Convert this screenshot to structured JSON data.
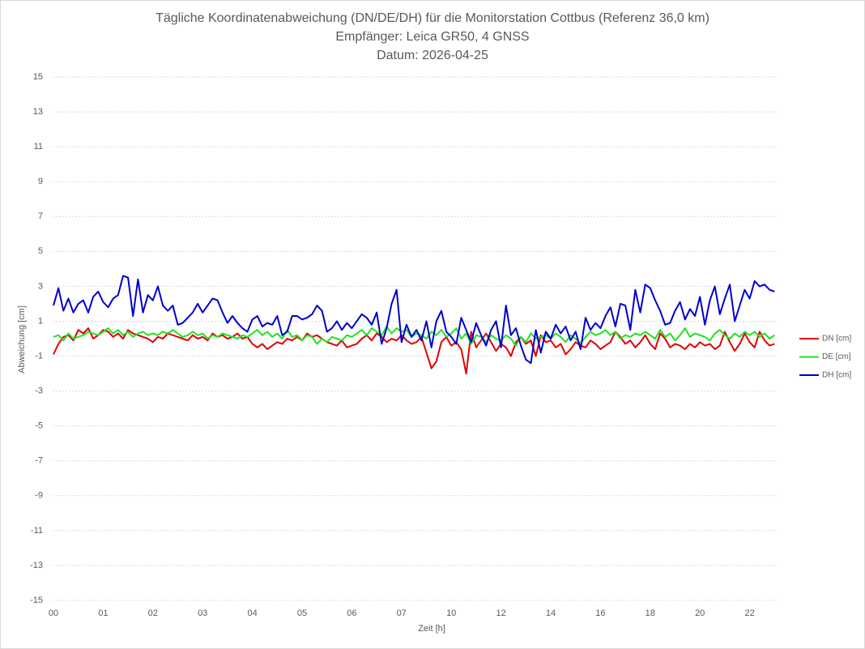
{
  "chart_data": {
    "type": "line",
    "title": "Tägliche Koordinatenabweichung (DN/DE/DH) für die Monitorstation Cottbus (Referenz 36,0 km)",
    "subtitle": "Empfänger: Leica GR50, 4 GNSS",
    "date": "Datum: 2026-04-25",
    "x_label": "Zeit [h]",
    "y_label": "Abweichung [cm]",
    "categories": [
      "00",
      null,
      null,
      null,
      null,
      null,
      null,
      null,
      null,
      null,
      "01",
      null,
      null,
      null,
      null,
      null,
      null,
      null,
      null,
      null,
      "02",
      null,
      null,
      null,
      null,
      null,
      null,
      null,
      null,
      null,
      "03",
      null,
      null,
      null,
      null,
      null,
      null,
      null,
      null,
      null,
      "04",
      null,
      null,
      null,
      null,
      null,
      null,
      null,
      null,
      null,
      "05",
      null,
      null,
      null,
      null,
      null,
      null,
      null,
      null,
      null,
      "06",
      null,
      null,
      null,
      null,
      null,
      null,
      null,
      null,
      null,
      "07",
      null,
      null,
      null,
      null,
      null,
      null,
      null,
      null,
      null,
      "10",
      null,
      null,
      null,
      null,
      null,
      null,
      null,
      null,
      null,
      "12",
      null,
      null,
      null,
      null,
      null,
      null,
      null,
      null,
      null,
      "14",
      null,
      null,
      null,
      null,
      null,
      null,
      null,
      null,
      null,
      "16",
      null,
      null,
      null,
      null,
      null,
      null,
      null,
      null,
      null,
      "18",
      null,
      null,
      null,
      null,
      null,
      null,
      null,
      null,
      null,
      "20",
      null,
      null,
      null,
      null,
      null,
      null,
      null,
      null,
      null,
      "22",
      null,
      null,
      null,
      null,
      null
    ],
    "series": [
      {
        "name": "DN [cm]",
        "color": "#e00000",
        "values": [
          -0.9,
          -0.3,
          0.1,
          0.2,
          -0.1,
          0.5,
          0.3,
          0.6,
          0.0,
          0.2,
          0.5,
          0.4,
          0.1,
          0.3,
          0.0,
          0.5,
          0.3,
          0.2,
          0.1,
          0.0,
          -0.2,
          0.1,
          0.0,
          0.3,
          0.2,
          0.1,
          0.0,
          -0.1,
          0.2,
          0.0,
          0.1,
          -0.1,
          0.3,
          0.1,
          0.2,
          0.0,
          0.1,
          0.3,
          0.0,
          0.1,
          -0.3,
          -0.5,
          -0.3,
          -0.6,
          -0.4,
          -0.2,
          -0.3,
          0.0,
          -0.1,
          0.1,
          -0.1,
          0.3,
          0.1,
          0.2,
          0.0,
          -0.2,
          -0.3,
          -0.4,
          -0.1,
          -0.5,
          -0.4,
          -0.3,
          0.0,
          0.2,
          -0.1,
          0.3,
          0.1,
          -0.2,
          0.0,
          -0.1,
          0.2,
          -0.1,
          -0.3,
          -0.2,
          0.1,
          -0.8,
          -1.7,
          -1.3,
          -0.2,
          0.1,
          -0.4,
          -0.2,
          -0.6,
          -2.0,
          0.4,
          -0.5,
          -0.1,
          0.3,
          -0.2,
          -0.7,
          -0.3,
          -0.5,
          -1.0,
          -0.2,
          0.1,
          -0.3,
          -0.1,
          -1.0,
          0.2,
          -0.2,
          -0.1,
          -0.5,
          -0.3,
          -0.9,
          -0.6,
          -0.2,
          -0.4,
          -0.5,
          -0.1,
          -0.3,
          -0.6,
          -0.4,
          -0.2,
          0.4,
          0.1,
          -0.3,
          -0.1,
          -0.5,
          -0.2,
          0.2,
          -0.3,
          -0.6,
          0.3,
          0.0,
          -0.5,
          -0.3,
          -0.4,
          -0.6,
          -0.3,
          -0.5,
          -0.2,
          -0.4,
          -0.3,
          -0.6,
          -0.4,
          0.4,
          -0.2,
          -0.7,
          -0.3,
          0.3,
          -0.2,
          -0.5,
          0.4,
          -0.1,
          -0.4,
          -0.3
        ]
      },
      {
        "name": "DE [cm]",
        "color": "#22e022",
        "values": [
          0.1,
          0.2,
          -0.1,
          0.3,
          0.0,
          0.1,
          0.2,
          0.4,
          0.3,
          0.2,
          0.4,
          0.6,
          0.3,
          0.5,
          0.2,
          0.4,
          0.1,
          0.3,
          0.4,
          0.2,
          0.3,
          0.2,
          0.4,
          0.3,
          0.5,
          0.3,
          0.1,
          0.2,
          0.4,
          0.2,
          0.3,
          0.0,
          0.2,
          0.1,
          0.3,
          0.2,
          0.1,
          0.0,
          0.2,
          0.1,
          0.3,
          0.5,
          0.2,
          0.4,
          0.1,
          0.3,
          0.0,
          0.5,
          0.1,
          0.2,
          -0.1,
          0.2,
          0.1,
          -0.3,
          0.0,
          -0.2,
          0.1,
          0.0,
          -0.1,
          0.2,
          0.1,
          0.3,
          0.5,
          0.2,
          0.6,
          0.4,
          0.2,
          0.7,
          0.3,
          0.6,
          0.4,
          0.5,
          0.1,
          0.3,
          0.2,
          0.0,
          0.4,
          0.2,
          0.5,
          0.1,
          0.3,
          0.6,
          0.0,
          0.3,
          -0.3,
          0.2,
          0.1,
          -0.2,
          0.2,
          0.0,
          -0.1,
          0.2,
          0.0,
          -0.4,
          0.1,
          -0.2,
          0.3,
          0.0,
          0.1,
          0.2,
          0.0,
          0.3,
          0.1,
          -0.2,
          0.2,
          0.0,
          -0.3,
          0.1,
          0.4,
          0.2,
          0.3,
          0.5,
          0.2,
          0.4,
          0.0,
          0.2,
          0.1,
          0.3,
          0.2,
          0.4,
          0.2,
          0.0,
          0.5,
          0.1,
          0.3,
          -0.1,
          0.2,
          0.6,
          0.1,
          0.3,
          0.2,
          0.1,
          -0.1,
          0.3,
          0.5,
          0.2,
          0.0,
          0.3,
          0.1,
          0.4,
          0.2,
          0.4,
          0.1,
          0.3,
          0.0,
          0.2
        ]
      },
      {
        "name": "DH [cm]",
        "color": "#0000cc",
        "values": [
          1.9,
          2.9,
          1.6,
          2.3,
          1.5,
          2.0,
          2.2,
          1.5,
          2.4,
          2.7,
          2.1,
          1.8,
          2.3,
          2.5,
          3.6,
          3.5,
          1.3,
          3.4,
          1.5,
          2.5,
          2.2,
          3.0,
          1.9,
          1.6,
          1.9,
          0.8,
          0.9,
          1.2,
          1.5,
          2.0,
          1.5,
          1.9,
          2.3,
          2.2,
          1.5,
          0.9,
          1.3,
          0.9,
          0.6,
          0.4,
          1.1,
          1.3,
          0.7,
          0.9,
          0.8,
          1.3,
          0.2,
          0.4,
          1.3,
          1.3,
          1.1,
          1.2,
          1.4,
          1.9,
          1.6,
          0.4,
          0.6,
          1.0,
          0.5,
          0.9,
          0.6,
          1.0,
          1.4,
          1.2,
          0.8,
          1.5,
          -0.3,
          0.6,
          2.0,
          2.8,
          -0.2,
          0.8,
          0.1,
          0.5,
          -0.1,
          1.0,
          -0.5,
          1.0,
          1.6,
          0.4,
          0.1,
          -0.3,
          1.2,
          0.5,
          -0.2,
          0.9,
          0.2,
          -0.4,
          0.5,
          1.0,
          -0.5,
          1.9,
          0.2,
          0.6,
          -0.4,
          -1.2,
          -1.4,
          0.5,
          -0.8,
          0.4,
          0.0,
          0.8,
          0.3,
          0.7,
          -0.1,
          0.4,
          -0.6,
          1.2,
          0.5,
          0.9,
          0.6,
          1.3,
          1.8,
          0.7,
          2.0,
          1.9,
          0.5,
          2.8,
          1.5,
          3.1,
          2.9,
          2.2,
          1.6,
          0.8,
          0.9,
          1.6,
          2.1,
          1.1,
          1.7,
          1.3,
          2.4,
          0.8,
          2.2,
          3.0,
          1.4,
          2.3,
          3.1,
          1.0,
          1.9,
          2.8,
          2.3,
          3.3,
          3.0,
          3.1,
          2.8,
          2.7
        ]
      }
    ],
    "ylim": [
      -15,
      15
    ],
    "yticks": [
      -15,
      -13,
      -11,
      -9,
      -7,
      -5,
      -3,
      -1,
      1,
      3,
      5,
      7,
      9,
      11,
      13,
      15
    ],
    "grid": true,
    "legend": "right"
  }
}
